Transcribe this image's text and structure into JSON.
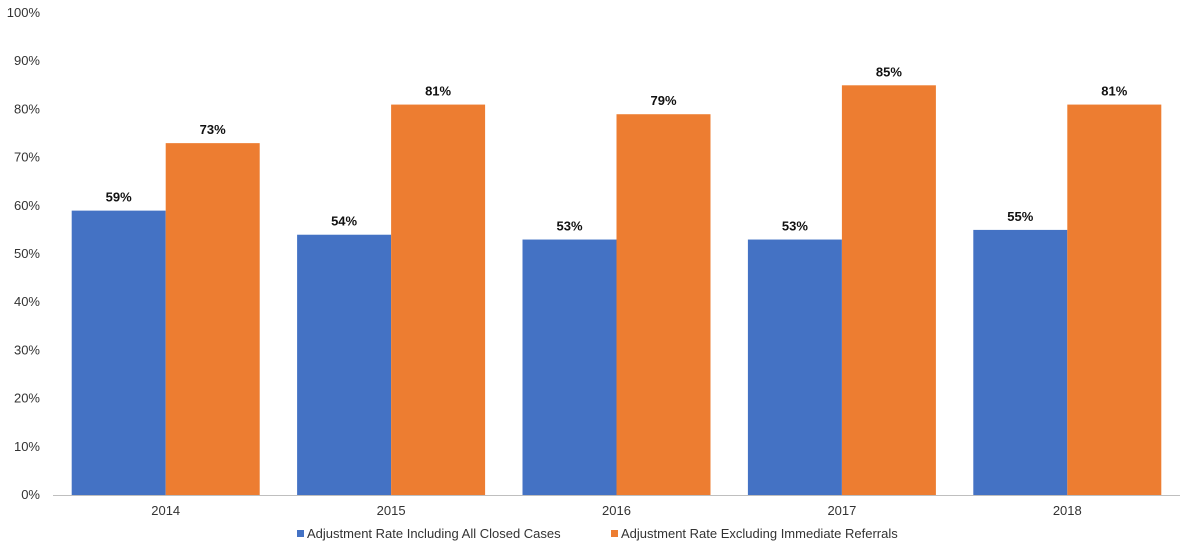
{
  "chart_data": {
    "type": "bar",
    "categories": [
      "2014",
      "2015",
      "2016",
      "2017",
      "2018"
    ],
    "series": [
      {
        "name": "Adjustment Rate Including All Closed Cases",
        "values": [
          59,
          54,
          53,
          53,
          55
        ],
        "labels": [
          "59%",
          "54%",
          "53%",
          "53%",
          "55%"
        ],
        "color": "#4472C4"
      },
      {
        "name": "Adjustment Rate Excluding Immediate Referrals",
        "values": [
          73,
          81,
          79,
          85,
          81
        ],
        "labels": [
          "73%",
          "81%",
          "79%",
          "85%",
          "81%"
        ],
        "color": "#ED7D31"
      }
    ],
    "ylim": [
      0,
      100
    ],
    "yticks": [
      0,
      10,
      20,
      30,
      40,
      50,
      60,
      70,
      80,
      90,
      100
    ],
    "ytick_labels": [
      "0%",
      "10%",
      "20%",
      "30%",
      "40%",
      "50%",
      "60%",
      "70%",
      "80%",
      "90%",
      "100%"
    ],
    "grid": false,
    "legend_position": "bottom"
  }
}
